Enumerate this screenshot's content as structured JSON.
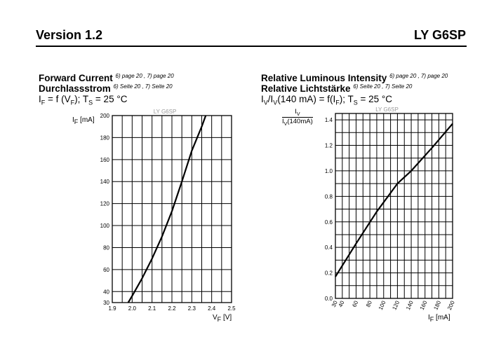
{
  "header": {
    "left": "Version 1.2",
    "right": "LY G6SP"
  },
  "charts_text": {
    "left": {
      "title1": "Forward Current",
      "title1_ref": "6) page 20 , 7) page 20",
      "title2": "Durchlassstrom",
      "title2_ref": "6) Seite 20 , 7) Seite 20",
      "formula": {
        "a": "I",
        "a_sub": "F",
        "b": " = f (V",
        "b_sub": "F",
        "c": "); T",
        "c_sub": "S",
        "d": " = 25 °C"
      },
      "ylabel": {
        "main": "I",
        "sub": "F",
        "rest": " [mA]"
      },
      "xlabel": {
        "main": "V",
        "sub": "F",
        "rest": " [V]"
      }
    },
    "right": {
      "title1": "Relative Luminous Intensity",
      "title1_ref": "6) page 20 , 7) page 20",
      "title2": "Relative Lichtstärke",
      "title2_ref": "6) Seite 20 , 7) Seite 20",
      "formula": {
        "a": "I",
        "a_sub": "V",
        "b": "/I",
        "b_sub": "V",
        "c": "(140 mA) = f(I",
        "c_sub": "F",
        "d": "); T",
        "d_sub": "S",
        "e": " = 25 °C"
      },
      "ylabel": {
        "num_main": "I",
        "num_sub": "V",
        "den_main": "I",
        "den_sub": "V",
        "den_rest": "(140mA)"
      },
      "xlabel": {
        "main": "I",
        "sub": "F",
        "rest": " [mA]"
      }
    }
  },
  "colors": {
    "line": "#000000",
    "grid": "#000000",
    "watermark": "#9a9a9a"
  },
  "chart_data": [
    {
      "type": "line",
      "watermark": "LY G6SP",
      "xlim": [
        1.9,
        2.5
      ],
      "x_ticks": [
        1.9,
        2.0,
        2.1,
        2.2,
        2.3,
        2.4,
        2.5
      ],
      "x_tick_labels": [
        "1.9",
        "2.0",
        "2.1",
        "2.2",
        "2.3",
        "2.4",
        "2.5"
      ],
      "ylim": [
        30,
        200
      ],
      "y_ticks": [
        30,
        40,
        60,
        80,
        100,
        120,
        140,
        160,
        180,
        200
      ],
      "y_tick_labels": [
        "30",
        "40",
        "60",
        "80",
        "100",
        "120",
        "140",
        "160",
        "180",
        "200"
      ],
      "grid": true,
      "series": [
        {
          "x": [
            1.98,
            2.0,
            2.05,
            2.1,
            2.15,
            2.2,
            2.25,
            2.3,
            2.35,
            2.37
          ],
          "y": [
            30,
            36,
            52,
            70,
            90,
            113,
            140,
            168,
            190,
            200
          ]
        }
      ]
    },
    {
      "type": "line",
      "watermark": "LY G6SP",
      "xlim": [
        30,
        200
      ],
      "x_ticks": [
        30,
        40,
        60,
        80,
        100,
        120,
        140,
        160,
        180,
        200
      ],
      "x_tick_labels": [
        "30",
        "40",
        "60",
        "80",
        "100",
        "120",
        "140",
        "160",
        "180",
        "200"
      ],
      "ylim": [
        0.0,
        1.45
      ],
      "y_ticks": [
        0.0,
        0.2,
        0.4,
        0.6,
        0.8,
        1.0,
        1.2,
        1.4
      ],
      "y_tick_labels": [
        "0.0",
        "0.2",
        "0.4",
        "0.6",
        "0.8",
        "1.0",
        "1.2",
        "1.4"
      ],
      "grid": true,
      "series": [
        {
          "x": [
            30,
            60,
            90,
            120,
            140,
            170,
            200
          ],
          "y": [
            0.17,
            0.43,
            0.68,
            0.9,
            1.0,
            1.18,
            1.37
          ]
        }
      ]
    }
  ]
}
